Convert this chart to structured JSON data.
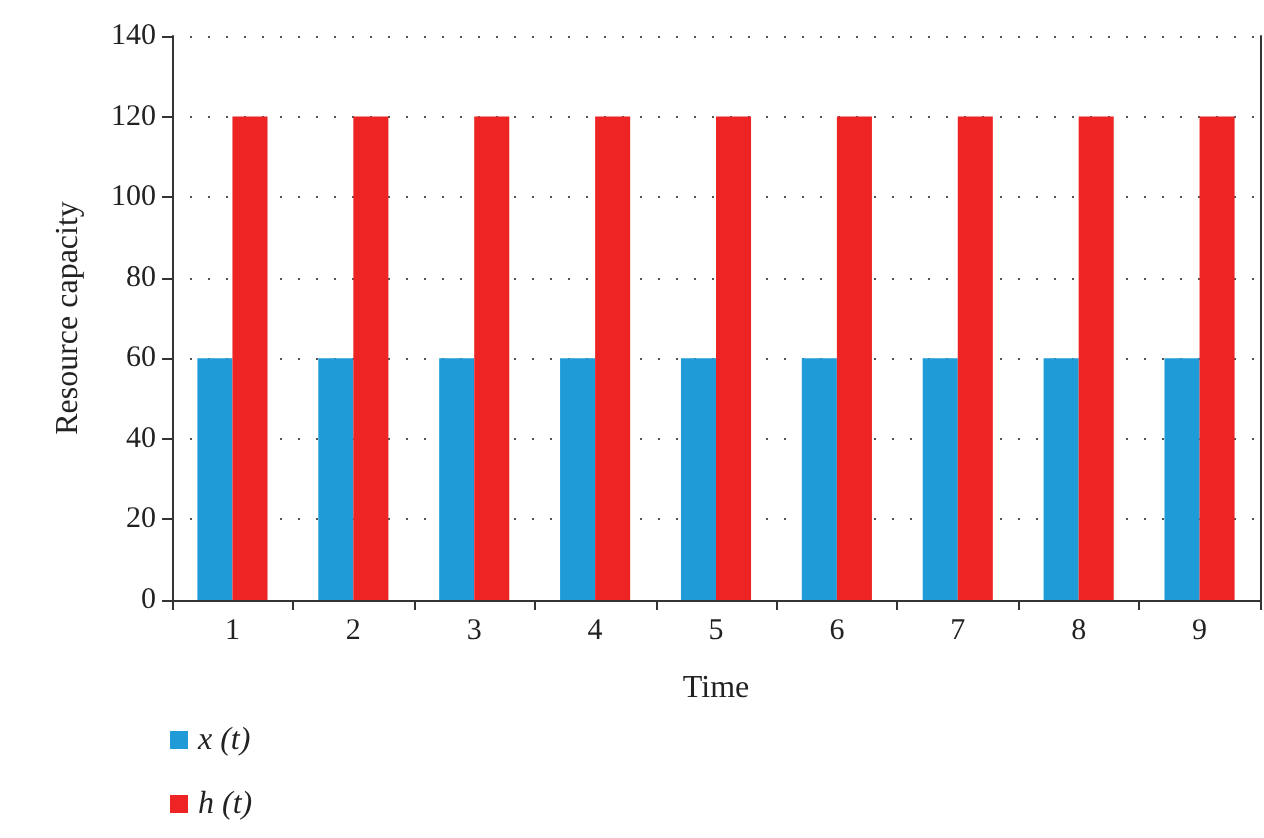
{
  "chart_data": {
    "type": "bar",
    "xlabel": "Time",
    "ylabel": "Resource capacity",
    "categories": [
      "1",
      "2",
      "3",
      "4",
      "5",
      "6",
      "7",
      "8",
      "9"
    ],
    "series": [
      {
        "name": "x (t)",
        "color": "#1f9cd8",
        "values": [
          60,
          60,
          60,
          60,
          60,
          60,
          60,
          60,
          60
        ]
      },
      {
        "name": "h (t)",
        "color": "#ee2424",
        "values": [
          120,
          120,
          120,
          120,
          120,
          120,
          120,
          120,
          120
        ]
      }
    ],
    "ylim": [
      0,
      140
    ],
    "yticks": [
      0,
      20,
      40,
      60,
      80,
      100,
      120,
      140
    ],
    "grid": "y",
    "legend": "bottom left"
  }
}
